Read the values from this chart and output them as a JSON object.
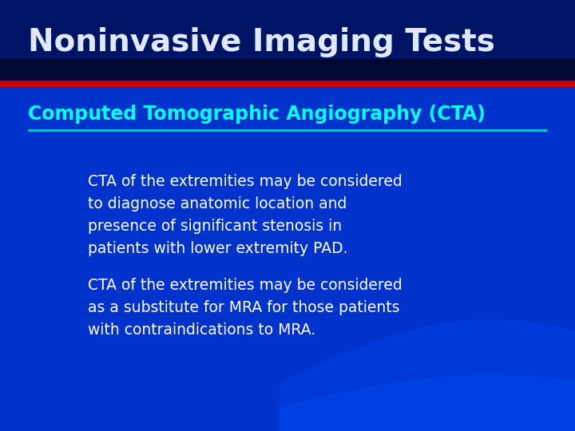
{
  "title": "Noninvasive Imaging Tests",
  "subtitle": "Computed Tomographic Angiography (CTA)",
  "bullet1": "CTA of the extremities may be considered\nto diagnose anatomic location and\npresence of significant stenosis in\npatients with lower extremity PAD.",
  "bullet2": "CTA of the extremities may be considered\nas a substitute for MRA for those patients\nwith contraindications to MRA.",
  "bg_color": "#0033cc",
  "header_bg_color": "#001466",
  "title_color": "#e0e8ff",
  "subtitle_color": "#00ffff",
  "body_text_color": "#ffffff",
  "red_line_color": "#cc0000",
  "subtitle_line_color": "#00ccdd",
  "title_fontsize": 28,
  "subtitle_fontsize": 17,
  "body_fontsize": 13.5
}
